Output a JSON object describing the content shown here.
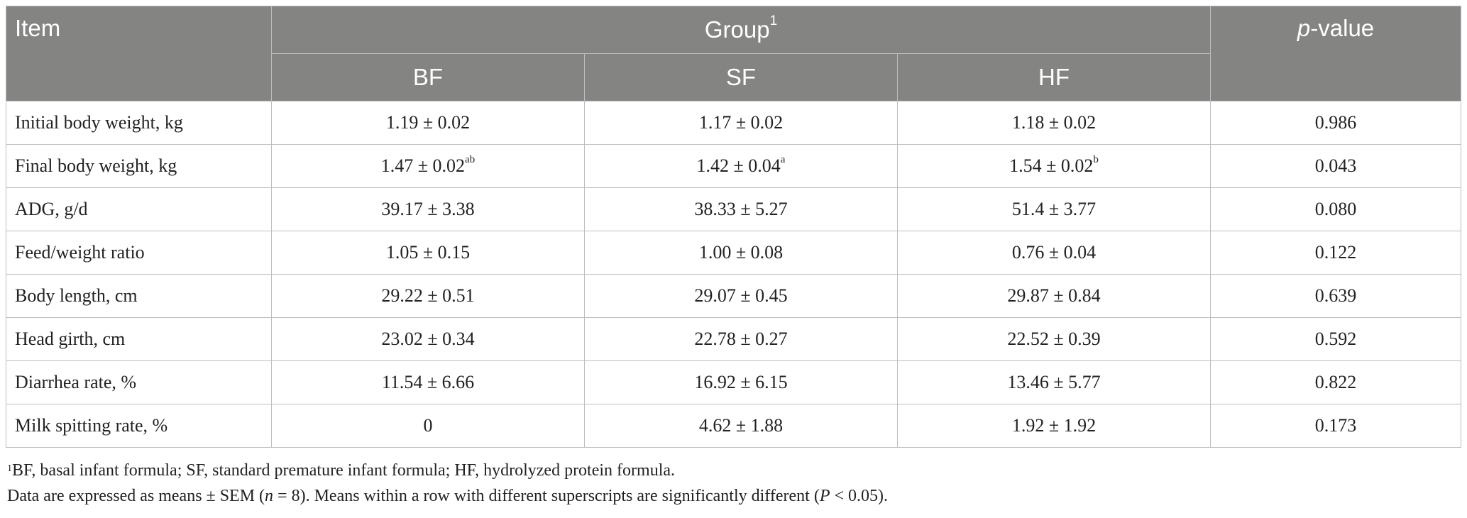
{
  "table": {
    "header": {
      "item": "Item",
      "group": "Group",
      "group_sup": "1",
      "p_value_p": "p",
      "p_value_rest": "-value",
      "subgroups": [
        "BF",
        "SF",
        "HF"
      ]
    },
    "rows": [
      {
        "label": "Initial body weight, kg",
        "bf": "1.19 ± 0.02",
        "bf_sup": "",
        "sf": "1.17 ± 0.02",
        "sf_sup": "",
        "hf": "1.18 ± 0.02",
        "hf_sup": "",
        "p": "0.986"
      },
      {
        "label": "Final body weight, kg",
        "bf": "1.47 ± 0.02",
        "bf_sup": "ab",
        "sf": "1.42 ± 0.04",
        "sf_sup": "a",
        "hf": "1.54 ± 0.02",
        "hf_sup": "b",
        "p": "0.043"
      },
      {
        "label": "ADG, g/d",
        "bf": "39.17 ± 3.38",
        "bf_sup": "",
        "sf": "38.33 ± 5.27",
        "sf_sup": "",
        "hf": "51.4 ± 3.77",
        "hf_sup": "",
        "p": "0.080"
      },
      {
        "label": "Feed/weight ratio",
        "bf": "1.05 ± 0.15",
        "bf_sup": "",
        "sf": "1.00 ± 0.08",
        "sf_sup": "",
        "hf": "0.76 ± 0.04",
        "hf_sup": "",
        "p": "0.122"
      },
      {
        "label": "Body length, cm",
        "bf": "29.22 ± 0.51",
        "bf_sup": "",
        "sf": "29.07 ± 0.45",
        "sf_sup": "",
        "hf": "29.87 ± 0.84",
        "hf_sup": "",
        "p": "0.639"
      },
      {
        "label": "Head girth, cm",
        "bf": "23.02 ± 0.34",
        "bf_sup": "",
        "sf": "22.78 ± 0.27",
        "sf_sup": "",
        "hf": "22.52 ± 0.39",
        "hf_sup": "",
        "p": "0.592"
      },
      {
        "label": "Diarrhea rate, %",
        "bf": "11.54 ± 6.66",
        "bf_sup": "",
        "sf": "16.92 ± 6.15",
        "sf_sup": "",
        "hf": "13.46 ± 5.77",
        "hf_sup": "",
        "p": "0.822"
      },
      {
        "label": "Milk spitting rate, %",
        "bf": "0",
        "bf_sup": "",
        "sf": "4.62 ± 1.88",
        "sf_sup": "",
        "hf": "1.92 ± 1.92",
        "hf_sup": "",
        "p": "0.173"
      }
    ]
  },
  "notes": {
    "footnote_sup": "1",
    "footnote_text": "BF, basal infant formula; SF, standard premature infant formula; HF, hydrolyzed protein formula.",
    "data_a": "Data are expressed as means ± SEM (",
    "data_n": "n",
    "data_b": " = 8). Means within a row with different superscripts are significantly different (",
    "data_p": "P",
    "data_c": " < 0.05)."
  }
}
